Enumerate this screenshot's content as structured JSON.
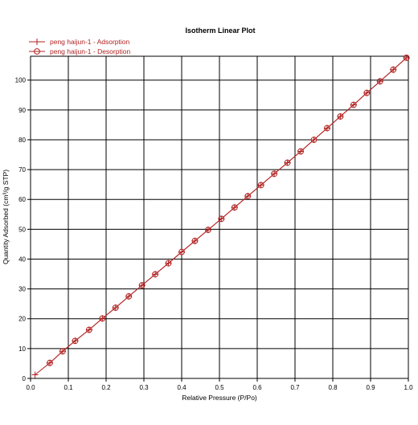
{
  "chart_data": {
    "type": "line",
    "title": "Isotherm Linear Plot",
    "xlabel": "Relative Pressure (P/Po)",
    "ylabel": "Quantity Adsorbed (cm³/g STP)",
    "xlim": [
      0,
      1.0
    ],
    "ylim": [
      0,
      108
    ],
    "x_ticks": [
      "0.0",
      "0.1",
      "0.2",
      "0.3",
      "0.4",
      "0.5",
      "0.6",
      "0.7",
      "0.8",
      "0.9",
      "1.0"
    ],
    "y_ticks": [
      "0",
      "10",
      "20",
      "30",
      "40",
      "50",
      "60",
      "70",
      "80",
      "90",
      "100"
    ],
    "grid": true,
    "legend_position": "top-left",
    "series": [
      {
        "name": "peng haijun-1 - Adsorption",
        "marker": "plus",
        "color": "#b22222",
        "x": [
          0.012,
          0.051,
          0.085,
          0.118,
          0.155,
          0.19,
          0.225,
          0.26,
          0.295,
          0.33,
          0.365,
          0.4,
          0.435,
          0.47,
          0.505,
          0.54,
          0.575,
          0.61,
          0.645,
          0.68,
          0.715,
          0.75,
          0.785,
          0.82,
          0.855,
          0.89,
          0.925,
          0.96,
          0.995
        ],
        "y": [
          1.2,
          5.2,
          9.1,
          12.6,
          16.3,
          20.1,
          23.7,
          27.5,
          31.2,
          34.9,
          38.6,
          42.4,
          46.1,
          49.8,
          53.5,
          57.3,
          61.1,
          64.8,
          68.6,
          72.3,
          76.1,
          80.0,
          83.9,
          87.8,
          91.7,
          95.7,
          99.6,
          103.5,
          107.5
        ]
      },
      {
        "name": "peng haijun-1 - Desorption",
        "marker": "circle",
        "color": "#b22222",
        "x": [
          0.995,
          0.96,
          0.925,
          0.89,
          0.855,
          0.82,
          0.785,
          0.75,
          0.715,
          0.68,
          0.645,
          0.61,
          0.575,
          0.54,
          0.505,
          0.47,
          0.435,
          0.4,
          0.365,
          0.33,
          0.295,
          0.26,
          0.225,
          0.19,
          0.155,
          0.118,
          0.085,
          0.051
        ],
        "y": [
          107.5,
          103.5,
          99.6,
          95.7,
          91.7,
          87.8,
          83.9,
          80.0,
          76.1,
          72.3,
          68.6,
          64.8,
          61.1,
          57.3,
          53.5,
          49.8,
          46.1,
          42.4,
          38.6,
          34.9,
          31.2,
          27.5,
          23.7,
          20.1,
          16.3,
          12.6,
          9.1,
          5.2
        ]
      }
    ]
  }
}
